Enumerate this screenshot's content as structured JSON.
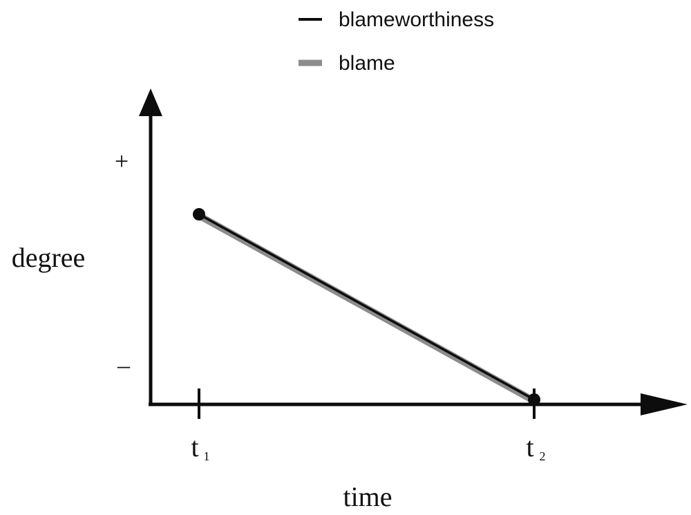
{
  "colors": {
    "axis": "#0d0d0d",
    "blameworthiness": "#0d0d0d",
    "blame": "#8c8c8c",
    "background": "#ffffff"
  },
  "chart_data": {
    "type": "line",
    "title": "",
    "xlabel": "time",
    "ylabel": "degree",
    "x_ticks": [
      "t1",
      "t2"
    ],
    "y_ticks": [
      "+",
      "–"
    ],
    "legend_position": "top-right",
    "series": [
      {
        "name": "blameworthiness",
        "x": [
          "t1",
          "t2"
        ],
        "values": [
          0.8,
          0.0
        ]
      },
      {
        "name": "blame",
        "x": [
          "t1",
          "t2"
        ],
        "values": [
          0.8,
          0.0
        ]
      }
    ],
    "ylim": [
      0,
      1
    ]
  },
  "labels": {
    "xlabel": "time",
    "ylabel": "degree",
    "plus": "+",
    "minus": "–",
    "t1_base": "t",
    "t1_sub": "1",
    "t2_base": "t",
    "t2_sub": "2"
  },
  "legend": {
    "blameworthiness": "blameworthiness",
    "blame": "blame"
  }
}
